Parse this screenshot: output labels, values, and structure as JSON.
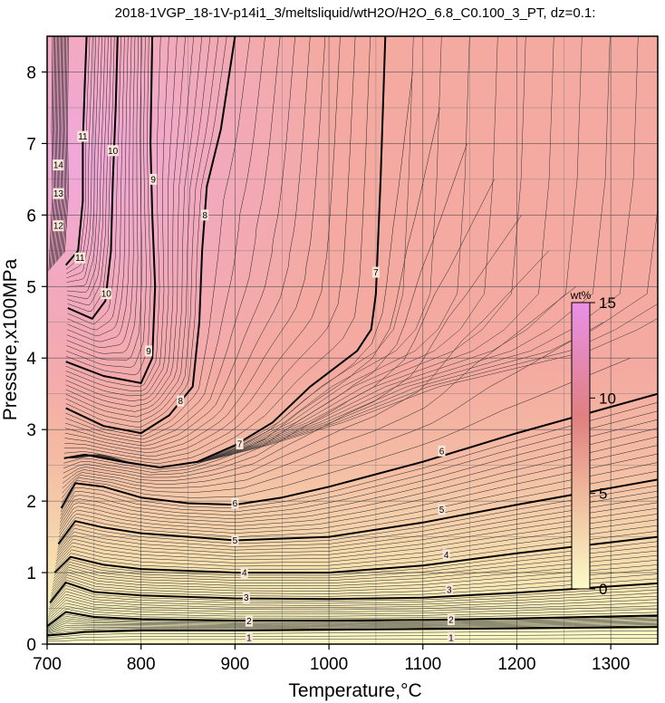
{
  "chart_data": {
    "type": "contour",
    "title": "2018-1VGP_18-1V-p14i1_3/meltsliquid/wtH2O/H2O_6.8_C0.100_3_PT, dz=0.1:",
    "xlabel": "Temperature,°C",
    "ylabel": "Pressure,x100MPa",
    "xlim": [
      700,
      1350
    ],
    "ylim": [
      0,
      8.5
    ],
    "x_ticks": [
      "700",
      "800",
      "900",
      "1000",
      "1100",
      "1200",
      "1300"
    ],
    "y_ticks": [
      "0",
      "1",
      "2",
      "3",
      "4",
      "5",
      "6",
      "7",
      "8"
    ],
    "grid": true,
    "colorbar": {
      "unit": "wt%",
      "range": [
        0,
        15
      ],
      "ticks": [
        "0",
        "5",
        "10",
        "15"
      ],
      "placement": "right-inside",
      "color_low": "#fbfbc8",
      "color_mid": "#f4b0a4",
      "color_high": "#e890e8"
    },
    "contour_levels": [
      {
        "value": 1,
        "label": "1",
        "points": [
          [
            700,
            0.12
          ],
          [
            720,
            0.14
          ],
          [
            740,
            0.17
          ],
          [
            800,
            0.19
          ],
          [
            900,
            0.19
          ],
          [
            1000,
            0.2
          ],
          [
            1100,
            0.21
          ],
          [
            1200,
            0.22
          ],
          [
            1350,
            0.24
          ]
        ]
      },
      {
        "value": 2,
        "label": "2",
        "points": [
          [
            700,
            0.25
          ],
          [
            720,
            0.45
          ],
          [
            750,
            0.38
          ],
          [
            800,
            0.35
          ],
          [
            900,
            0.33
          ],
          [
            1000,
            0.33
          ],
          [
            1100,
            0.34
          ],
          [
            1200,
            0.36
          ],
          [
            1350,
            0.4
          ]
        ]
      },
      {
        "value": 3,
        "label": "3",
        "points": [
          [
            703,
            0.58
          ],
          [
            720,
            0.86
          ],
          [
            750,
            0.73
          ],
          [
            800,
            0.68
          ],
          [
            900,
            0.64
          ],
          [
            1000,
            0.63
          ],
          [
            1100,
            0.65
          ],
          [
            1200,
            0.72
          ],
          [
            1350,
            0.85
          ]
        ]
      },
      {
        "value": 4,
        "label": "4",
        "points": [
          [
            708,
            1.0
          ],
          [
            725,
            1.22
          ],
          [
            760,
            1.11
          ],
          [
            800,
            1.05
          ],
          [
            900,
            1.0
          ],
          [
            1000,
            1.0
          ],
          [
            1100,
            1.1
          ],
          [
            1200,
            1.27
          ],
          [
            1350,
            1.5
          ]
        ]
      },
      {
        "value": 5,
        "label": "5",
        "points": [
          [
            712,
            1.4
          ],
          [
            730,
            1.72
          ],
          [
            760,
            1.63
          ],
          [
            800,
            1.55
          ],
          [
            900,
            1.45
          ],
          [
            1000,
            1.5
          ],
          [
            1100,
            1.7
          ],
          [
            1200,
            1.95
          ],
          [
            1350,
            2.3
          ]
        ]
      },
      {
        "value": 6,
        "label": "6",
        "points": [
          [
            715,
            1.9
          ],
          [
            730,
            2.25
          ],
          [
            760,
            2.2
          ],
          [
            800,
            2.05
          ],
          [
            850,
            1.97
          ],
          [
            900,
            1.95
          ],
          [
            950,
            2.05
          ],
          [
            1000,
            2.2
          ],
          [
            1100,
            2.55
          ],
          [
            1200,
            2.95
          ],
          [
            1350,
            3.5
          ]
        ]
      },
      {
        "value": 7,
        "label": "7",
        "points": [
          [
            718,
            2.6
          ],
          [
            740,
            2.65
          ],
          [
            780,
            2.55
          ],
          [
            820,
            2.47
          ],
          [
            860,
            2.55
          ],
          [
            900,
            2.78
          ],
          [
            940,
            3.1
          ],
          [
            980,
            3.6
          ],
          [
            1030,
            4.1
          ],
          [
            1045,
            4.4
          ],
          [
            1050,
            4.9
          ],
          [
            1055,
            6.5
          ],
          [
            1060,
            8.5
          ]
        ]
      },
      {
        "value": 8,
        "label": "8",
        "points": [
          [
            720,
            3.3
          ],
          [
            760,
            3.05
          ],
          [
            800,
            2.95
          ],
          [
            830,
            3.2
          ],
          [
            855,
            3.6
          ],
          [
            862,
            4.5
          ],
          [
            865,
            5.5
          ],
          [
            870,
            6.4
          ],
          [
            885,
            7.2
          ],
          [
            900,
            8.5
          ]
        ]
      },
      {
        "value": 9,
        "label": "9",
        "points": [
          [
            720,
            3.95
          ],
          [
            760,
            3.75
          ],
          [
            800,
            3.65
          ],
          [
            812,
            4.0
          ],
          [
            815,
            5.0
          ],
          [
            812,
            6.0
          ],
          [
            810,
            7.0
          ],
          [
            812,
            8.5
          ]
        ]
      },
      {
        "value": 10,
        "label": "10",
        "points": [
          [
            722,
            4.7
          ],
          [
            748,
            4.55
          ],
          [
            762,
            4.8
          ],
          [
            768,
            5.5
          ],
          [
            770,
            6.5
          ],
          [
            773,
            7.5
          ],
          [
            775,
            8.5
          ]
        ]
      },
      {
        "value": 11,
        "label": "11",
        "points": [
          [
            720,
            5.3
          ],
          [
            733,
            5.5
          ],
          [
            738,
            6.2
          ],
          [
            738,
            7.0
          ],
          [
            740,
            7.8
          ],
          [
            742,
            8.5
          ]
        ]
      }
    ],
    "contour_labels": [
      {
        "text": "1",
        "x": 915,
        "y": 0.09
      },
      {
        "text": "1",
        "x": 1130,
        "y": 0.09
      },
      {
        "text": "2",
        "x": 915,
        "y": 0.32
      },
      {
        "text": "2",
        "x": 1130,
        "y": 0.34
      },
      {
        "text": "3",
        "x": 912,
        "y": 0.65
      },
      {
        "text": "3",
        "x": 1128,
        "y": 0.76
      },
      {
        "text": "4",
        "x": 910,
        "y": 1.0
      },
      {
        "text": "4",
        "x": 1125,
        "y": 1.25
      },
      {
        "text": "5",
        "x": 900,
        "y": 1.45
      },
      {
        "text": "5",
        "x": 1120,
        "y": 1.88
      },
      {
        "text": "6",
        "x": 900,
        "y": 1.97
      },
      {
        "text": "6",
        "x": 1120,
        "y": 2.7
      },
      {
        "text": "7",
        "x": 905,
        "y": 2.8
      },
      {
        "text": "7",
        "x": 1050,
        "y": 5.2
      },
      {
        "text": "8",
        "x": 842,
        "y": 3.4
      },
      {
        "text": "8",
        "x": 868,
        "y": 6.0
      },
      {
        "text": "9",
        "x": 808,
        "y": 4.1
      },
      {
        "text": "9",
        "x": 813,
        "y": 6.5
      },
      {
        "text": "10",
        "x": 763,
        "y": 4.9
      },
      {
        "text": "10",
        "x": 770,
        "y": 6.9
      },
      {
        "text": "11",
        "x": 735,
        "y": 5.4
      },
      {
        "text": "11",
        "x": 738,
        "y": 7.1
      },
      {
        "text": "12",
        "x": 712,
        "y": 5.85
      },
      {
        "text": "13",
        "x": 712,
        "y": 6.3
      },
      {
        "text": "14",
        "x": 712,
        "y": 6.7
      }
    ]
  }
}
